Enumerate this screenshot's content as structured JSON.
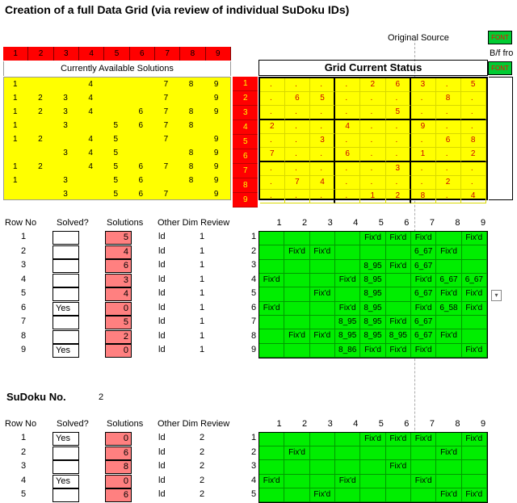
{
  "title": "Creation of a full Data Grid (via review of individual SuDoku IDs)",
  "original_source_label": "Original Source",
  "original_source_button": "FONT",
  "bf_label": "B/f fro",
  "bf_button": "FONT",
  "header_numbers": [
    "1",
    "2",
    "3",
    "4",
    "5",
    "6",
    "7",
    "8",
    "9"
  ],
  "available_label": "Currently Available Solutions",
  "status_label": "Grid Current Status",
  "available": [
    [
      "1",
      "",
      "",
      "4",
      "",
      "",
      "7",
      "8",
      "9"
    ],
    [
      "1",
      "2",
      "3",
      "4",
      "",
      "",
      "7",
      "",
      "9"
    ],
    [
      "1",
      "2",
      "3",
      "4",
      "",
      "6",
      "7",
      "8",
      "9"
    ],
    [
      "1",
      "",
      "3",
      "",
      "5",
      "6",
      "7",
      "8",
      ""
    ],
    [
      "1",
      "2",
      "",
      "4",
      "5",
      "",
      "7",
      "",
      "9"
    ],
    [
      "",
      "",
      "3",
      "4",
      "5",
      "",
      "",
      "8",
      "9"
    ],
    [
      "1",
      "2",
      "",
      "4",
      "5",
      "6",
      "7",
      "8",
      "9"
    ],
    [
      "1",
      "",
      "3",
      "",
      "5",
      "6",
      "",
      "8",
      "9"
    ],
    [
      "",
      "",
      "3",
      "",
      "5",
      "6",
      "7",
      "",
      "9"
    ]
  ],
  "current": [
    [
      ".",
      ".",
      ".",
      ".",
      "2",
      "6",
      "3",
      ".",
      "5"
    ],
    [
      ".",
      "6",
      "5",
      ".",
      ".",
      ".",
      ".",
      "8",
      "."
    ],
    [
      ".",
      ".",
      ".",
      ".",
      ".",
      "5",
      ".",
      ".",
      "."
    ],
    [
      "2",
      ".",
      ".",
      "4",
      ".",
      ".",
      "9",
      ".",
      "."
    ],
    [
      ".",
      ".",
      "3",
      ".",
      ".",
      ".",
      ".",
      "6",
      "8"
    ],
    [
      "7",
      ".",
      ".",
      "6",
      ".",
      ".",
      "1",
      ".",
      "2"
    ],
    [
      ".",
      ".",
      ".",
      ".",
      ".",
      "3",
      ".",
      ".",
      "."
    ],
    [
      ".",
      "7",
      "4",
      ".",
      ".",
      ".",
      ".",
      "2",
      "."
    ],
    [
      ".",
      ".",
      ".",
      ".",
      "1",
      "2",
      "8",
      ".",
      "4"
    ]
  ],
  "table1": {
    "headers": {
      "row_no": "Row No",
      "solved": "Solved?",
      "solutions": "Solutions",
      "other": "Other Dim Review"
    },
    "rows": [
      {
        "no": "1",
        "solved": "",
        "sol": "5",
        "dim": "ld",
        "rev": "1"
      },
      {
        "no": "2",
        "solved": "",
        "sol": "4",
        "dim": "ld",
        "rev": "1"
      },
      {
        "no": "3",
        "solved": "",
        "sol": "6",
        "dim": "ld",
        "rev": "1"
      },
      {
        "no": "4",
        "solved": "",
        "sol": "3",
        "dim": "ld",
        "rev": "1"
      },
      {
        "no": "5",
        "solved": "",
        "sol": "4",
        "dim": "ld",
        "rev": "1"
      },
      {
        "no": "6",
        "solved": "Yes",
        "sol": "0",
        "dim": "ld",
        "rev": "1"
      },
      {
        "no": "7",
        "solved": "",
        "sol": "5",
        "dim": "ld",
        "rev": "1"
      },
      {
        "no": "8",
        "solved": "",
        "sol": "2",
        "dim": "ld",
        "rev": "1"
      },
      {
        "no": "9",
        "solved": "Yes",
        "sol": "0",
        "dim": "ld",
        "rev": "1"
      }
    ],
    "grid": [
      [
        "",
        "",
        "",
        "",
        "Fix'd",
        "Fix'd",
        "Fix'd",
        "",
        "Fix'd"
      ],
      [
        "",
        "Fix'd",
        "Fix'd",
        "",
        "",
        "",
        "6_67",
        "Fix'd",
        ""
      ],
      [
        "",
        "",
        "",
        "",
        "8_95",
        "Fix'd",
        "6_67",
        "",
        ""
      ],
      [
        "Fix'd",
        "",
        "",
        "Fix'd",
        "8_95",
        "",
        "Fix'd",
        "6_67",
        "6_67"
      ],
      [
        "",
        "",
        "Fix'd",
        "",
        "8_95",
        "",
        "6_67",
        "Fix'd",
        "Fix'd"
      ],
      [
        "Fix'd",
        "",
        "",
        "Fix'd",
        "8_95",
        "",
        "Fix'd",
        "6_58",
        "Fix'd"
      ],
      [
        "",
        "",
        "",
        "8_95",
        "8_95",
        "Fix'd",
        "6_67",
        "",
        ""
      ],
      [
        "",
        "Fix'd",
        "Fix'd",
        "8_95",
        "8_95",
        "8_95",
        "6_67",
        "Fix'd",
        ""
      ],
      [
        "",
        "",
        "",
        "8_86",
        "Fix'd",
        "Fix'd",
        "Fix'd",
        "",
        "Fix'd"
      ]
    ]
  },
  "sudoku_label": "SuDoku No.",
  "sudoku_no": "2",
  "table2": {
    "headers": {
      "row_no": "Row No",
      "solved": "Solved?",
      "solutions": "Solutions",
      "other": "Other Dim Review"
    },
    "rows": [
      {
        "no": "1",
        "solved": "Yes",
        "sol": "0",
        "dim": "ld",
        "rev": "2"
      },
      {
        "no": "2",
        "solved": "",
        "sol": "6",
        "dim": "ld",
        "rev": "2"
      },
      {
        "no": "3",
        "solved": "",
        "sol": "8",
        "dim": "ld",
        "rev": "2"
      },
      {
        "no": "4",
        "solved": "Yes",
        "sol": "0",
        "dim": "ld",
        "rev": "2"
      },
      {
        "no": "5",
        "solved": "",
        "sol": "6",
        "dim": "ld",
        "rev": "2"
      }
    ],
    "grid": [
      [
        "",
        "",
        "",
        "",
        "Fix'd",
        "Fix'd",
        "Fix'd",
        "",
        "Fix'd"
      ],
      [
        "",
        "Fix'd",
        "",
        "",
        "",
        "",
        "",
        "Fix'd",
        ""
      ],
      [
        "",
        "",
        "",
        "",
        "",
        "Fix'd",
        "",
        "",
        ""
      ],
      [
        "Fix'd",
        "",
        "",
        "Fix'd",
        "",
        "",
        "Fix'd",
        "",
        ""
      ],
      [
        "",
        "",
        "Fix'd",
        "",
        "",
        "",
        "",
        "Fix'd",
        "Fix'd"
      ]
    ]
  },
  "dropdown_glyph": "▾",
  "colors": {
    "yellow": "#ffff00",
    "red": "#ff0000",
    "green": "#00ee00",
    "pink": "#ff8080"
  }
}
